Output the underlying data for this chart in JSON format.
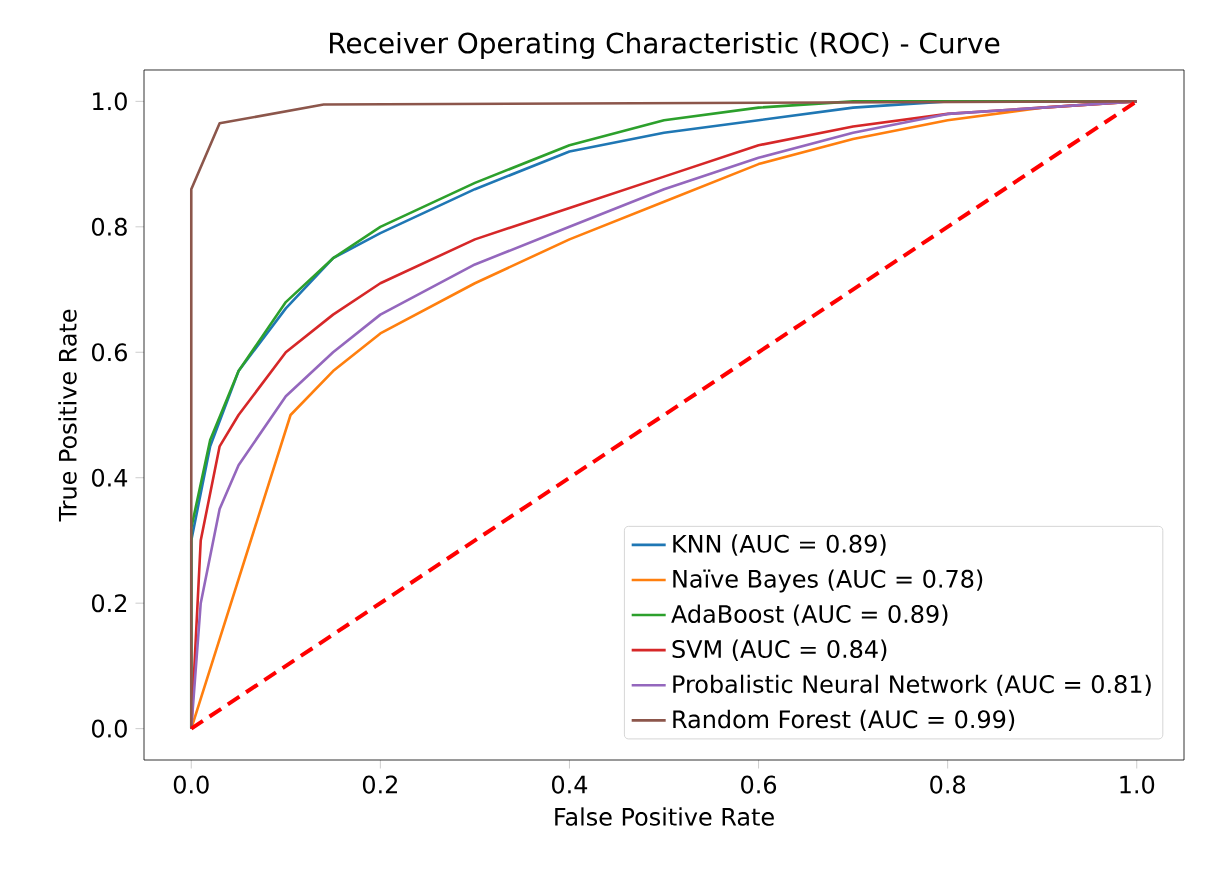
{
  "chart_data": {
    "type": "line",
    "title": "Receiver Operating Characteristic (ROC) - Curve",
    "xlabel": "False Positive Rate",
    "ylabel": "True Positive Rate",
    "xlim": [
      -0.05,
      1.05
    ],
    "ylim": [
      -0.05,
      1.05
    ],
    "xticks": [
      {
        "value": 0,
        "label": "0.0"
      },
      {
        "value": 0.2,
        "label": "0.2"
      },
      {
        "value": 0.4,
        "label": "0.4"
      },
      {
        "value": 0.6,
        "label": "0.6"
      },
      {
        "value": 0.8,
        "label": "0.8"
      },
      {
        "value": 1,
        "label": "1.0"
      }
    ],
    "yticks": [
      {
        "value": 0,
        "label": "0.0"
      },
      {
        "value": 0.2,
        "label": "0.2"
      },
      {
        "value": 0.4,
        "label": "0.4"
      },
      {
        "value": 0.6,
        "label": "0.6"
      },
      {
        "value": 0.8,
        "label": "0.8"
      },
      {
        "value": 1,
        "label": "1.0"
      }
    ],
    "legend": "bottom right",
    "grid": false,
    "marker": "none",
    "series": [
      {
        "name": "KNN (AUC = 0.89)",
        "color": "#1f77b4",
        "x": [
          0,
          0,
          0.02,
          0.05,
          0.1,
          0.15,
          0.2,
          0.3,
          0.4,
          0.5,
          0.6,
          0.7,
          0.8,
          1
        ],
        "values": [
          0,
          0.3,
          0.45,
          0.57,
          0.67,
          0.75,
          0.79,
          0.86,
          0.92,
          0.95,
          0.97,
          0.99,
          1,
          1
        ]
      },
      {
        "name": "Naïve Bayes (AUC = 0.78)",
        "color": "#ff7f0e",
        "x": [
          0,
          0.105,
          0.15,
          0.2,
          0.3,
          0.4,
          0.5,
          0.6,
          0.7,
          0.8,
          0.9,
          1
        ],
        "values": [
          0,
          0.5,
          0.57,
          0.63,
          0.71,
          0.78,
          0.84,
          0.9,
          0.94,
          0.97,
          0.99,
          1
        ]
      },
      {
        "name": "AdaBoost (AUC = 0.89)",
        "color": "#2ca02c",
        "x": [
          0,
          0,
          0.02,
          0.05,
          0.1,
          0.15,
          0.2,
          0.3,
          0.4,
          0.5,
          0.6,
          0.7,
          1
        ],
        "values": [
          0,
          0.32,
          0.46,
          0.57,
          0.68,
          0.75,
          0.8,
          0.87,
          0.93,
          0.97,
          0.99,
          1,
          1
        ]
      },
      {
        "name": "SVM (AUC = 0.84)",
        "color": "#d62728",
        "x": [
          0,
          0.01,
          0.03,
          0.05,
          0.1,
          0.15,
          0.2,
          0.3,
          0.4,
          0.5,
          0.6,
          0.7,
          0.8,
          0.9,
          1
        ],
        "values": [
          0,
          0.3,
          0.45,
          0.5,
          0.6,
          0.66,
          0.71,
          0.78,
          0.83,
          0.88,
          0.93,
          0.96,
          0.98,
          0.99,
          1
        ]
      },
      {
        "name": "Probalistic Neural Network (AUC = 0.81)",
        "color": "#9467bd",
        "x": [
          0,
          0.01,
          0.03,
          0.05,
          0.1,
          0.15,
          0.2,
          0.3,
          0.4,
          0.5,
          0.6,
          0.7,
          0.8,
          0.9,
          1
        ],
        "values": [
          0,
          0.2,
          0.35,
          0.42,
          0.53,
          0.6,
          0.66,
          0.74,
          0.8,
          0.86,
          0.91,
          0.95,
          0.98,
          0.99,
          1
        ]
      },
      {
        "name": "Random Forest (AUC = 0.99)",
        "color": "#8c564b",
        "x": [
          0,
          0,
          0.03,
          0.14,
          1
        ],
        "values": [
          0,
          0.86,
          0.965,
          0.995,
          1
        ]
      },
      {
        "color": "#ff0000",
        "line_style": "dashed",
        "x": [
          0,
          1
        ],
        "values": [
          0,
          1
        ]
      }
    ]
  }
}
